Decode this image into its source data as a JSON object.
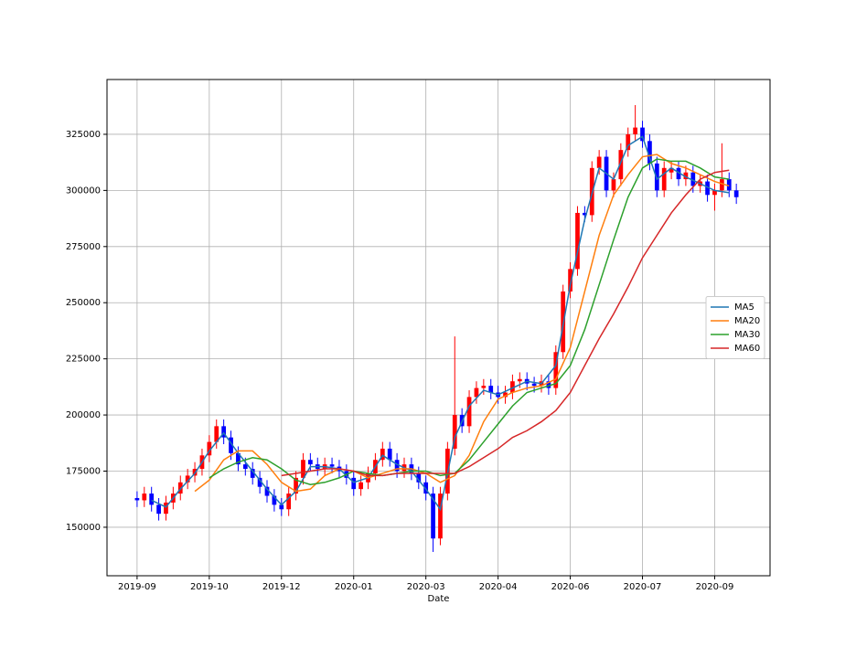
{
  "chart_data": {
    "type": "candlestick",
    "xlabel": "Date",
    "xlim": [
      -12.5,
      263
    ],
    "ylim": [
      128400,
      349400
    ],
    "xticks": [
      {
        "value": 0,
        "label": "2019-09"
      },
      {
        "value": 30,
        "label": "2019-10"
      },
      {
        "value": 60,
        "label": "2019-12"
      },
      {
        "value": 90,
        "label": "2020-01"
      },
      {
        "value": 120,
        "label": "2020-03"
      },
      {
        "value": 150,
        "label": "2020-04"
      },
      {
        "value": 180,
        "label": "2020-06"
      },
      {
        "value": 210,
        "label": "2020-07"
      },
      {
        "value": 240,
        "label": "2020-09"
      }
    ],
    "yticks": [
      150000,
      175000,
      200000,
      225000,
      250000,
      275000,
      300000,
      325000
    ],
    "grid": true,
    "legend": "center right",
    "up_color": "#ff0000",
    "down_color": "#0000ff",
    "candles": {
      "x": [
        0,
        3,
        6,
        9,
        12,
        15,
        18,
        21,
        24,
        27,
        30,
        33,
        36,
        39,
        42,
        45,
        48,
        51,
        54,
        57,
        60,
        63,
        66,
        69,
        72,
        75,
        78,
        81,
        84,
        87,
        90,
        93,
        96,
        99,
        102,
        105,
        108,
        111,
        114,
        117,
        120,
        123,
        126,
        129,
        132,
        135,
        138,
        141,
        144,
        147,
        150,
        153,
        156,
        159,
        162,
        165,
        168,
        171,
        174,
        177,
        180,
        183,
        186,
        189,
        192,
        195,
        198,
        201,
        204,
        207,
        210,
        213,
        216,
        219,
        222,
        225,
        228,
        231,
        234,
        237,
        240,
        243,
        246,
        249
      ],
      "open": [
        163000,
        162000,
        165000,
        160000,
        156000,
        161000,
        165000,
        170000,
        173000,
        176000,
        182000,
        188000,
        195000,
        190000,
        183000,
        178000,
        176000,
        172000,
        168000,
        164000,
        160000,
        158000,
        165000,
        172000,
        180000,
        178000,
        176000,
        178000,
        177000,
        175000,
        172000,
        167000,
        170000,
        174000,
        180000,
        185000,
        180000,
        175000,
        178000,
        174000,
        170000,
        165000,
        145000,
        165000,
        185000,
        200000,
        195000,
        208000,
        212000,
        213000,
        210000,
        208000,
        210000,
        215000,
        216000,
        214000,
        213000,
        215000,
        212000,
        228000,
        255000,
        265000,
        290000,
        289000,
        310000,
        315000,
        300000,
        305000,
        318000,
        325000,
        328000,
        322000,
        312000,
        300000,
        308000,
        310000,
        305000,
        308000,
        302000,
        304000,
        298000,
        300000,
        305000,
        300000
      ],
      "high": [
        166000,
        168000,
        168000,
        163000,
        164000,
        168000,
        173000,
        176000,
        179000,
        185000,
        191000,
        198000,
        198000,
        193000,
        186000,
        181000,
        179000,
        175000,
        171000,
        167000,
        163000,
        168000,
        175000,
        183000,
        183000,
        181000,
        181000,
        181000,
        180000,
        178000,
        175000,
        173000,
        177000,
        183000,
        188000,
        188000,
        183000,
        181000,
        181000,
        177000,
        173000,
        168000,
        168000,
        188000,
        235000,
        203000,
        211000,
        215000,
        216000,
        216000,
        213000,
        213000,
        218000,
        219000,
        219000,
        217000,
        218000,
        218000,
        231000,
        258000,
        268000,
        293000,
        293000,
        313000,
        318000,
        318000,
        308000,
        321000,
        328000,
        338000,
        331000,
        325000,
        315000,
        313000,
        313000,
        313000,
        311000,
        311000,
        307000,
        307000,
        303000,
        321000,
        308000,
        303000
      ],
      "low": [
        159000,
        159000,
        157000,
        153000,
        153000,
        158000,
        162000,
        167000,
        170000,
        173000,
        179000,
        185000,
        187000,
        180000,
        175000,
        173000,
        169000,
        165000,
        161000,
        157000,
        155000,
        155000,
        162000,
        169000,
        175000,
        173000,
        173000,
        174000,
        172000,
        169000,
        164000,
        164000,
        167000,
        171000,
        177000,
        177000,
        172000,
        172000,
        171000,
        167000,
        162000,
        139000,
        142000,
        162000,
        182000,
        192000,
        192000,
        205000,
        209000,
        207000,
        205000,
        205000,
        207000,
        212000,
        211000,
        210000,
        210000,
        209000,
        209000,
        225000,
        252000,
        262000,
        286000,
        286000,
        307000,
        297000,
        297000,
        302000,
        315000,
        322000,
        319000,
        309000,
        297000,
        297000,
        305000,
        302000,
        302000,
        299000,
        299000,
        295000,
        291000,
        297000,
        297000,
        294000
      ],
      "close": [
        162000,
        165000,
        160000,
        156000,
        161000,
        165000,
        170000,
        173000,
        176000,
        182000,
        188000,
        195000,
        190000,
        183000,
        178000,
        176000,
        172000,
        168000,
        164000,
        160000,
        158000,
        165000,
        172000,
        180000,
        178000,
        176000,
        178000,
        177000,
        175000,
        172000,
        167000,
        170000,
        174000,
        180000,
        185000,
        180000,
        175000,
        178000,
        174000,
        170000,
        165000,
        145000,
        165000,
        185000,
        200000,
        195000,
        208000,
        212000,
        213000,
        210000,
        208000,
        210000,
        215000,
        216000,
        214000,
        213000,
        215000,
        212000,
        228000,
        255000,
        265000,
        290000,
        289000,
        310000,
        315000,
        300000,
        305000,
        318000,
        325000,
        328000,
        322000,
        312000,
        300000,
        310000,
        310000,
        305000,
        308000,
        302000,
        304000,
        298000,
        300000,
        305000,
        300000,
        297000
      ]
    },
    "x": [
      0,
      6,
      12,
      18,
      24,
      30,
      36,
      42,
      48,
      54,
      60,
      66,
      72,
      78,
      84,
      90,
      96,
      102,
      108,
      114,
      120,
      126,
      132,
      138,
      144,
      150,
      156,
      162,
      168,
      174,
      180,
      186,
      192,
      198,
      204,
      210,
      216,
      222,
      228,
      234,
      240,
      246
    ],
    "series": [
      {
        "name": "MA5",
        "color": "#1f77b4",
        "values": [
          null,
          162000,
          159000,
          167000,
          174000,
          184000,
          192000,
          183000,
          175000,
          167000,
          160000,
          166000,
          177000,
          177000,
          176000,
          170000,
          172000,
          182000,
          178000,
          175000,
          167000,
          158000,
          190000,
          204000,
          211000,
          209000,
          212000,
          215000,
          214000,
          222000,
          258000,
          287000,
          310000,
          305000,
          320000,
          324000,
          305000,
          310000,
          306000,
          303000,
          300000,
          299000
        ]
      },
      {
        "name": "MA20",
        "color": "#ff7f0e",
        "values": [
          null,
          null,
          null,
          null,
          166000,
          171000,
          180000,
          184000,
          184000,
          178000,
          170000,
          166000,
          167000,
          173000,
          176000,
          175000,
          172000,
          174000,
          176000,
          176000,
          174000,
          170000,
          173000,
          182000,
          197000,
          207000,
          210000,
          212000,
          213000,
          216000,
          230000,
          255000,
          280000,
          298000,
          307000,
          315000,
          316000,
          312000,
          310000,
          307000,
          304000,
          302000
        ]
      },
      {
        "name": "MA30",
        "color": "#2ca02c",
        "values": [
          null,
          null,
          null,
          null,
          null,
          172000,
          176000,
          179000,
          181000,
          180000,
          176000,
          171000,
          169000,
          170000,
          172000,
          175000,
          174000,
          173000,
          174000,
          175000,
          175000,
          173000,
          174000,
          180000,
          188000,
          196000,
          204000,
          210000,
          212000,
          214000,
          222000,
          238000,
          258000,
          278000,
          297000,
          310000,
          314000,
          313000,
          313000,
          310000,
          306000,
          305000
        ]
      },
      {
        "name": "MA60",
        "color": "#d62728",
        "values": [
          null,
          null,
          null,
          null,
          null,
          null,
          null,
          null,
          null,
          null,
          173000,
          174000,
          175000,
          176000,
          176000,
          175000,
          173000,
          173000,
          174000,
          174000,
          174000,
          174000,
          174000,
          177000,
          181000,
          185000,
          190000,
          193000,
          197000,
          202000,
          210000,
          222000,
          234000,
          245000,
          257000,
          270000,
          280000,
          290000,
          298000,
          305000,
          308000,
          309000
        ]
      }
    ]
  }
}
